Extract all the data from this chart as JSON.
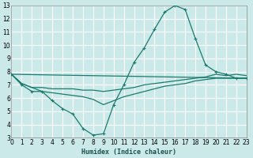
{
  "xlabel": "Humidex (Indice chaleur)",
  "background_color": "#cce9e9",
  "grid_color": "#b8d8d8",
  "line_color": "#1a7a6e",
  "xlim": [
    0,
    23
  ],
  "ylim": [
    3,
    13
  ],
  "xticks": [
    0,
    1,
    2,
    3,
    4,
    5,
    6,
    7,
    8,
    9,
    10,
    11,
    12,
    13,
    14,
    15,
    16,
    17,
    18,
    19,
    20,
    21,
    22,
    23
  ],
  "yticks": [
    3,
    4,
    5,
    6,
    7,
    8,
    9,
    10,
    11,
    12,
    13
  ],
  "curve1_x": [
    0,
    1,
    2,
    3,
    4,
    5,
    6,
    7,
    8,
    9,
    10,
    11,
    12,
    13,
    14,
    15,
    16,
    17,
    18,
    19,
    20,
    21,
    22,
    23
  ],
  "curve1_y": [
    7.8,
    7.0,
    6.5,
    6.5,
    5.8,
    5.2,
    4.8,
    3.7,
    3.2,
    3.3,
    5.5,
    7.0,
    8.7,
    9.8,
    11.2,
    12.5,
    13.0,
    12.7,
    10.5,
    8.5,
    8.0,
    7.8,
    7.5,
    7.5
  ],
  "curve2_x": [
    0,
    1,
    2,
    3,
    4,
    5,
    6,
    7,
    8,
    9,
    10,
    11,
    12,
    13,
    14,
    15,
    16,
    17,
    18,
    19,
    20,
    21,
    22,
    23
  ],
  "curve2_y": [
    7.8,
    7.1,
    6.8,
    6.8,
    6.7,
    6.7,
    6.7,
    6.6,
    6.6,
    6.5,
    6.6,
    6.7,
    6.8,
    7.0,
    7.1,
    7.2,
    7.3,
    7.4,
    7.5,
    7.6,
    7.8,
    7.7,
    7.8,
    7.7
  ],
  "curve3_x": [
    0,
    1,
    2,
    3,
    4,
    5,
    6,
    7,
    8,
    9,
    10,
    11,
    12,
    13,
    14,
    15,
    16,
    17,
    18,
    19,
    20,
    21,
    22,
    23
  ],
  "curve3_y": [
    7.8,
    7.1,
    6.8,
    6.5,
    6.4,
    6.3,
    6.2,
    6.1,
    5.9,
    5.5,
    5.8,
    6.1,
    6.3,
    6.5,
    6.7,
    6.9,
    7.0,
    7.1,
    7.3,
    7.4,
    7.5,
    7.5,
    7.5,
    7.5
  ],
  "curve4_x": [
    0,
    23
  ],
  "curve4_y": [
    7.8,
    7.5
  ]
}
